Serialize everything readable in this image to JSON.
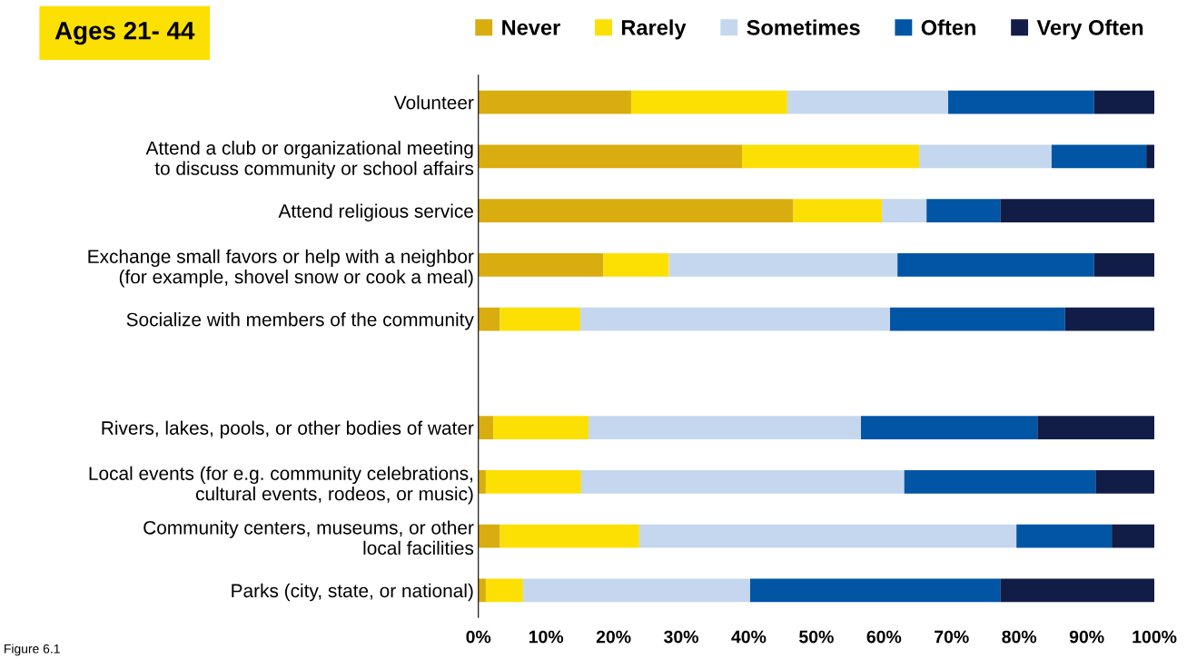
{
  "chart_data": {
    "type": "bar",
    "orientation": "horizontal",
    "stacked": true,
    "title": "Ages 21- 44",
    "categories": [
      "Volunteer",
      "Attend a club or organizational meeting\nto discuss community or school affairs",
      "Attend religious service",
      "Exchange small favors or help with a neighbor\n(for example, shovel snow or cook a meal)",
      "Socialize with members of the community",
      null,
      "Rivers, lakes, pools, or other bodies of water",
      "Local events (for e.g. community celebrations,\ncultural events, rodeos, or music)",
      "Community centers, museums, or other\nlocal facilities",
      "Parks (city, state, or national)"
    ],
    "series": [
      {
        "name": "Never",
        "color": "#d9ad0f",
        "values": [
          22.6,
          39.0,
          46.6,
          18.5,
          3.2,
          null,
          2.2,
          1.1,
          3.2,
          1.1
        ]
      },
      {
        "name": "Rarely",
        "color": "#fce004",
        "values": [
          23.1,
          26.2,
          13.1,
          9.7,
          11.9,
          null,
          14.1,
          14.1,
          20.6,
          5.5
        ]
      },
      {
        "name": "Sometimes",
        "color": "#c5d7ee",
        "values": [
          23.8,
          19.6,
          6.6,
          33.8,
          45.8,
          null,
          40.3,
          47.8,
          55.8,
          33.6
        ]
      },
      {
        "name": "Often",
        "color": "#0055a5",
        "values": [
          21.6,
          14.0,
          10.9,
          29.1,
          25.9,
          null,
          26.1,
          28.3,
          14.1,
          37.0
        ]
      },
      {
        "name": "Very Often",
        "color": "#121d47",
        "values": [
          8.9,
          1.2,
          22.8,
          8.9,
          13.2,
          null,
          17.3,
          8.7,
          6.3,
          22.8
        ]
      }
    ],
    "xlim": [
      0,
      100
    ],
    "xticks": [
      {
        "value": 0,
        "label": "0%"
      },
      {
        "value": 10,
        "label": "10%"
      },
      {
        "value": 20,
        "label": "20%"
      },
      {
        "value": 30,
        "label": "30%"
      },
      {
        "value": 40,
        "label": "40%"
      },
      {
        "value": 50,
        "label": "50%"
      },
      {
        "value": 60,
        "label": "60%"
      },
      {
        "value": 70,
        "label": "70%"
      },
      {
        "value": 80,
        "label": "80%"
      },
      {
        "value": 90,
        "label": "90%"
      },
      {
        "value": 100,
        "label": "100%"
      }
    ],
    "legend": "top",
    "annotations": [
      "Figure 6.1"
    ]
  }
}
